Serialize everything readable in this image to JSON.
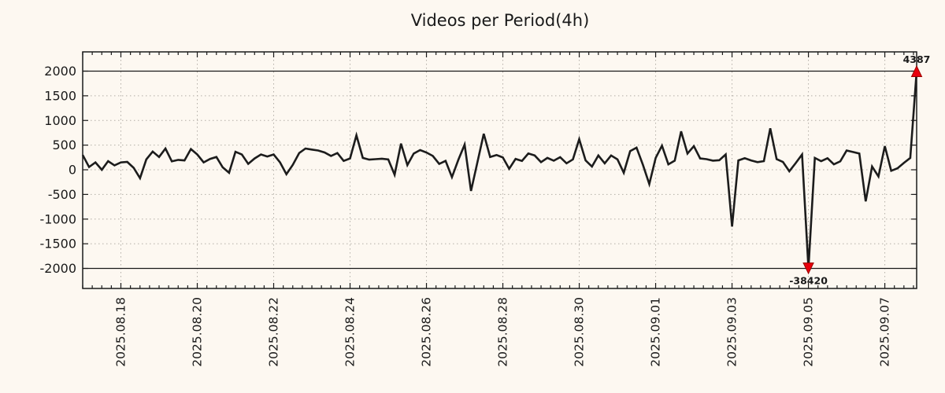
{
  "colors": {
    "background": "#fdf8f1",
    "line": "#1c1c1c",
    "grid": "#b3aea7",
    "spine": "#1a1a1a",
    "text": "#1a1a1a",
    "marker_fill": "#e8000d",
    "marker_edge": "#9b0000"
  },
  "chart_data": {
    "type": "line",
    "title": "Videos per Period(4h)",
    "xlabel": "",
    "ylabel": "",
    "x_start": "2025.08.17",
    "interval_hours": 4,
    "grid": true,
    "legend": false,
    "y_ticks": [
      -2000,
      -1500,
      -1000,
      -500,
      0,
      500,
      1000,
      1500,
      2000
    ],
    "y_clip_bounds": [
      -2000,
      2000
    ],
    "x_tick_labels": [
      "2025.08.18",
      "2025.08.20",
      "2025.08.22",
      "2025.08.24",
      "2025.08.26",
      "2025.08.28",
      "2025.08.30",
      "2025.09.01",
      "2025.09.03",
      "2025.09.05",
      "2025.09.07"
    ],
    "x_tick_indices": [
      6,
      18,
      30,
      42,
      54,
      66,
      78,
      90,
      102,
      114,
      126
    ],
    "x_minor_tick_hours": 6,
    "values": [
      300,
      55,
      150,
      0,
      175,
      90,
      150,
      160,
      40,
      -170,
      210,
      370,
      260,
      430,
      170,
      200,
      190,
      420,
      310,
      150,
      220,
      260,
      50,
      -60,
      365,
      310,
      120,
      230,
      310,
      270,
      310,
      150,
      -90,
      100,
      340,
      430,
      410,
      390,
      350,
      280,
      340,
      180,
      230,
      700,
      240,
      205,
      215,
      225,
      210,
      -100,
      530,
      95,
      330,
      400,
      350,
      280,
      120,
      180,
      -150,
      200,
      510,
      -430,
      150,
      730,
      260,
      300,
      250,
      20,
      220,
      180,
      330,
      290,
      155,
      240,
      185,
      255,
      130,
      210,
      620,
      190,
      65,
      290,
      130,
      290,
      210,
      -60,
      380,
      450,
      100,
      -290,
      240,
      490,
      110,
      185,
      780,
      330,
      480,
      230,
      215,
      185,
      195,
      310,
      -1150,
      190,
      235,
      190,
      155,
      175,
      840,
      215,
      160,
      -30,
      135,
      310,
      -38420,
      240,
      175,
      235,
      110,
      170,
      390,
      360,
      330,
      -640,
      65,
      -135,
      480,
      -20,
      30,
      140,
      240,
      4387
    ],
    "annotations": [
      {
        "label": "4387",
        "value": 4387,
        "index": 131,
        "clip": "top"
      },
      {
        "label": "-38420",
        "value": -38420,
        "index": 114,
        "clip": "bottom"
      }
    ]
  }
}
